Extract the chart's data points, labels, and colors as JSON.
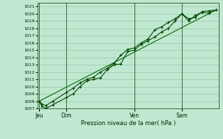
{
  "title": "Pression niveau de la mer( hPa )",
  "bg_color": "#c0e8d0",
  "grid_color": "#90c8a8",
  "line_color_dark": "#004400",
  "line_color_mid": "#006600",
  "ylim": [
    1007,
    1021.5
  ],
  "ytick_vals": [
    1007,
    1008,
    1009,
    1010,
    1011,
    1012,
    1013,
    1014,
    1015,
    1016,
    1017,
    1018,
    1019,
    1020,
    1021
  ],
  "x_day_labels": [
    {
      "label": "Jeu",
      "x": 0.0
    },
    {
      "label": "Dim",
      "x": 2.0
    },
    {
      "label": "Ven",
      "x": 7.0
    },
    {
      "label": "Sam",
      "x": 10.5
    }
  ],
  "series1_x": [
    0.0,
    0.2,
    0.5,
    1.0,
    2.0,
    2.5,
    3.0,
    3.5,
    4.0,
    4.5,
    5.0,
    5.5,
    6.0,
    6.5,
    7.0,
    7.5,
    8.0,
    8.5,
    9.0,
    9.5,
    10.0,
    10.5,
    11.0,
    11.5,
    12.0,
    12.5,
    13.0
  ],
  "series1_y": [
    1008.0,
    1007.3,
    1007.0,
    1007.5,
    1008.5,
    1009.0,
    1010.0,
    1010.8,
    1011.0,
    1011.2,
    1012.3,
    1013.0,
    1013.1,
    1014.8,
    1015.0,
    1015.8,
    1016.3,
    1016.8,
    1017.5,
    1018.0,
    1019.0,
    1020.0,
    1019.3,
    1019.5,
    1020.3,
    1020.4,
    1020.5
  ],
  "series2_x": [
    0.0,
    0.2,
    0.5,
    1.0,
    2.0,
    2.5,
    3.0,
    3.5,
    4.0,
    4.5,
    5.0,
    5.5,
    6.0,
    6.5,
    7.0,
    7.5,
    8.0,
    8.5,
    9.0,
    9.5,
    10.0,
    10.5,
    11.0,
    11.5,
    12.0,
    12.5,
    13.0
  ],
  "series2_y": [
    1008.0,
    1007.6,
    1007.4,
    1008.0,
    1009.2,
    1009.8,
    1010.5,
    1011.0,
    1011.3,
    1012.0,
    1012.5,
    1013.2,
    1014.3,
    1015.1,
    1015.3,
    1016.0,
    1016.5,
    1017.8,
    1018.2,
    1018.8,
    1019.3,
    1020.0,
    1019.0,
    1019.8,
    1020.2,
    1020.1,
    1020.5
  ],
  "trend_x": [
    0.0,
    13.0
  ],
  "trend_y": [
    1008.0,
    1020.5
  ],
  "xlim": [
    -0.1,
    13.2
  ]
}
